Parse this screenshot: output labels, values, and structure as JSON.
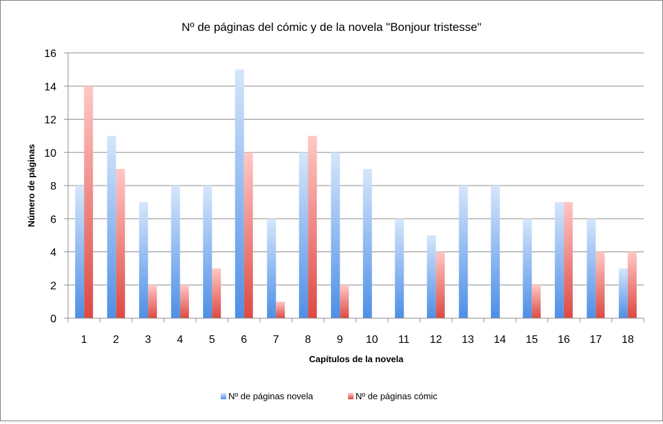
{
  "chart_data": {
    "type": "bar",
    "title": "Nº de páginas del cómic y de la novela \"Bonjour tristesse\"",
    "xlabel": "Capítulos de la novela",
    "ylabel": "Número de páginas",
    "ylim": [
      0,
      16
    ],
    "yticks": [
      0,
      2,
      4,
      6,
      8,
      10,
      12,
      14,
      16
    ],
    "grid": true,
    "legend_position": "bottom",
    "categories": [
      "1",
      "2",
      "3",
      "4",
      "5",
      "6",
      "7",
      "8",
      "9",
      "10",
      "11",
      "12",
      "13",
      "14",
      "15",
      "16",
      "17",
      "18"
    ],
    "series": [
      {
        "name": "Nº de páginas novela",
        "color": "#7aaef0",
        "values": [
          8,
          11,
          7,
          8,
          8,
          15,
          6,
          10,
          10,
          9,
          6,
          5,
          8,
          8,
          6,
          7,
          6,
          3
        ]
      },
      {
        "name": "Nº de páginas cómic",
        "color": "#e8625f",
        "values": [
          14,
          9,
          2,
          2,
          3,
          10,
          1,
          11,
          2,
          0,
          0,
          4,
          0,
          0,
          2,
          7,
          4,
          4
        ]
      }
    ]
  }
}
